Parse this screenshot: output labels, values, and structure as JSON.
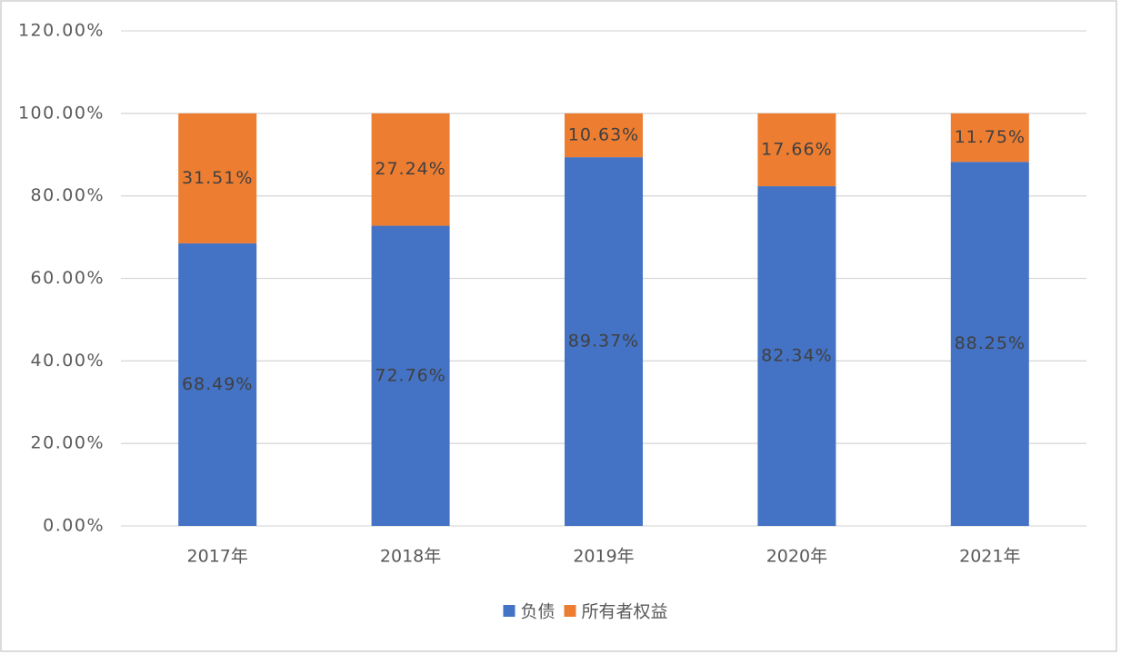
{
  "chart_data": {
    "type": "stacked_bar",
    "categories": [
      "2017年",
      "2018年",
      "2019年",
      "2020年",
      "2021年"
    ],
    "series": [
      {
        "name": "负债",
        "color": "#4472c4",
        "values": [
          68.49,
          72.76,
          89.37,
          82.34,
          88.25
        ],
        "value_labels": [
          "68.49%",
          "72.76%",
          "89.37%",
          "82.34%",
          "88.25%"
        ]
      },
      {
        "name": "所有者权益",
        "color": "#ed7d31",
        "values": [
          31.51,
          27.24,
          10.63,
          17.66,
          11.75
        ],
        "value_labels": [
          "31.51%",
          "27.24%",
          "10.63%",
          "17.66%",
          "11.75%"
        ]
      }
    ],
    "ylim": [
      0,
      120
    ],
    "yticks": [
      {
        "value": 0,
        "label": "0.00%"
      },
      {
        "value": 20,
        "label": "20.00%"
      },
      {
        "value": 40,
        "label": "40.00%"
      },
      {
        "value": 60,
        "label": "60.00%"
      },
      {
        "value": 80,
        "label": "80.00%"
      },
      {
        "value": 100,
        "label": "100.00%"
      },
      {
        "value": 120,
        "label": "120.00%"
      }
    ],
    "grid": true,
    "legend": "bottom"
  }
}
